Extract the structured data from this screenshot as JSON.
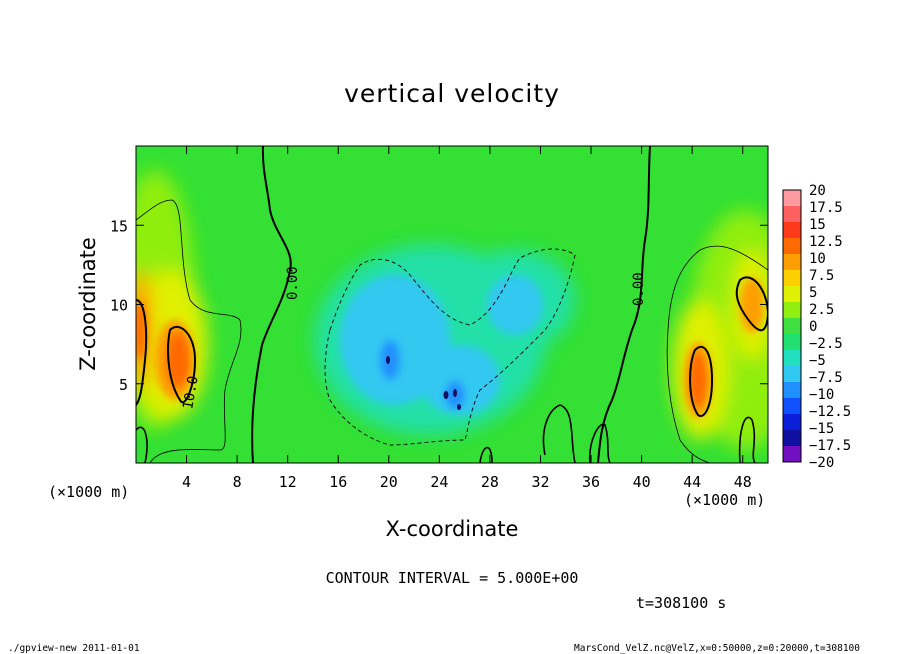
{
  "colors": {
    "plot_background": "#33e033",
    "contour_line": "#000000"
  },
  "chart_data": {
    "type": "heatmap",
    "title": "vertical velocity",
    "xlabel": "X-coordinate",
    "ylabel": "Z-coordinate",
    "x_unit_label": "(×1000 m)",
    "y_unit_label": "(×1000 m)",
    "xlim": [
      0,
      50
    ],
    "ylim": [
      0,
      20
    ],
    "x_ticks": [
      4,
      8,
      12,
      16,
      20,
      24,
      28,
      32,
      36,
      40,
      44,
      48
    ],
    "y_ticks": [
      5,
      10,
      15
    ],
    "contour_labels": [
      "0.00",
      "0.00",
      "10.0"
    ],
    "colorbar": {
      "levels": [
        "20",
        "17.5",
        "15",
        "12.5",
        "10",
        "7.5",
        "5",
        "2.5",
        "0",
        "−2.5",
        "−5",
        "−7.5",
        "−10",
        "−12.5",
        "−15",
        "−17.5",
        "−20"
      ],
      "colors": [
        "#ff9aa0",
        "#ff6060",
        "#ff3a1a",
        "#ff6a00",
        "#ff9e00",
        "#ffd000",
        "#e0f000",
        "#90ee10",
        "#40e040",
        "#20e070",
        "#20e0c0",
        "#30c8f0",
        "#2090ff",
        "#1050ff",
        "#0a20d8",
        "#1010a0",
        "#7010c0"
      ]
    },
    "contour_interval": "CONTOUR INTERVAL = 5.000E+00",
    "time_label": "t=308100 s",
    "footer_left": "./gpview-new   2011-01-01",
    "footer_right": "MarsCond_VelZ.nc@VelZ,x=0:50000,z=0:20000,t=308100"
  }
}
